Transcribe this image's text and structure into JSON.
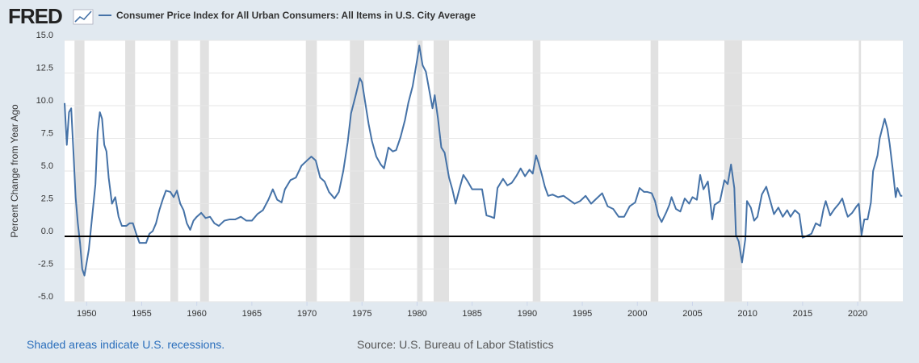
{
  "logo": "FRED",
  "chart_data": {
    "type": "line",
    "title": "Consumer Price Index for All Urban Consumers: All Items in U.S. City Average",
    "ylabel": "Percent Change from Year Ago",
    "recession_note": "Shaded areas indicate U.S. recessions.",
    "source": "Source: U.S. Bureau of Labor Statistics",
    "xlim": [
      1948,
      2024.1
    ],
    "ylim": [
      -5,
      15
    ],
    "xticks": [
      1950,
      1955,
      1960,
      1965,
      1970,
      1975,
      1980,
      1985,
      1990,
      1995,
      2000,
      2005,
      2010,
      2015,
      2020
    ],
    "yticks": [
      {
        "value": -5,
        "label": "-5.0"
      },
      -2.5,
      {
        "value": 0,
        "label": "0.0"
      },
      2.5,
      {
        "value": 5,
        "label": "5.0"
      },
      7.5,
      {
        "value": 10,
        "label": "10.0"
      },
      12.5,
      {
        "value": 15,
        "label": "15.0"
      }
    ],
    "grid": true,
    "recessions": [
      [
        1948.9,
        1949.8
      ],
      [
        1953.5,
        1954.4
      ],
      [
        1957.6,
        1958.3
      ],
      [
        1960.3,
        1961.1
      ],
      [
        1969.9,
        1970.9
      ],
      [
        1973.9,
        1975.2
      ],
      [
        1980.0,
        1980.5
      ],
      [
        1981.5,
        1982.9
      ],
      [
        1990.5,
        1991.2
      ],
      [
        2001.2,
        2001.9
      ],
      [
        2007.9,
        2009.5
      ],
      [
        2020.1,
        2020.3
      ]
    ],
    "x": [
      1948.0,
      1948.2,
      1948.4,
      1948.6,
      1948.8,
      1949.0,
      1949.2,
      1949.4,
      1949.6,
      1949.8,
      1950.0,
      1950.2,
      1950.5,
      1950.8,
      1951.0,
      1951.2,
      1951.4,
      1951.6,
      1951.8,
      1952.0,
      1952.3,
      1952.6,
      1952.9,
      1953.2,
      1953.6,
      1953.9,
      1954.2,
      1954.5,
      1954.8,
      1955.1,
      1955.4,
      1955.7,
      1956.0,
      1956.3,
      1956.6,
      1956.9,
      1957.2,
      1957.6,
      1957.9,
      1958.2,
      1958.5,
      1958.8,
      1959.1,
      1959.4,
      1959.7,
      1960.0,
      1960.4,
      1960.8,
      1961.2,
      1961.6,
      1962.0,
      1962.5,
      1963.0,
      1963.5,
      1964.0,
      1964.5,
      1965.0,
      1965.5,
      1966.0,
      1966.5,
      1966.9,
      1967.3,
      1967.7,
      1968.0,
      1968.5,
      1969.0,
      1969.5,
      1970.0,
      1970.4,
      1970.8,
      1971.2,
      1971.6,
      1972.0,
      1972.5,
      1972.9,
      1973.3,
      1973.7,
      1974.0,
      1974.4,
      1974.8,
      1975.0,
      1975.3,
      1975.6,
      1975.9,
      1976.3,
      1976.7,
      1977.0,
      1977.4,
      1977.8,
      1978.1,
      1978.5,
      1978.9,
      1979.2,
      1979.6,
      1980.0,
      1980.2,
      1980.5,
      1980.8,
      1981.1,
      1981.4,
      1981.6,
      1981.9,
      1982.2,
      1982.5,
      1982.9,
      1983.2,
      1983.5,
      1983.9,
      1984.2,
      1984.6,
      1985.0,
      1985.5,
      1985.9,
      1986.3,
      1986.7,
      1987.0,
      1987.3,
      1987.8,
      1988.2,
      1988.6,
      1989.0,
      1989.4,
      1989.8,
      1990.2,
      1990.5,
      1990.8,
      1991.0,
      1991.3,
      1991.6,
      1991.9,
      1992.3,
      1992.8,
      1993.3,
      1993.8,
      1994.3,
      1994.8,
      1995.3,
      1995.8,
      1996.3,
      1996.8,
      1997.3,
      1997.8,
      1998.3,
      1998.8,
      1999.3,
      1999.8,
      2000.2,
      2000.6,
      2000.9,
      2001.3,
      2001.6,
      2001.9,
      2002.2,
      2002.6,
      2002.9,
      2003.1,
      2003.5,
      2003.9,
      2004.3,
      2004.7,
      2005.0,
      2005.4,
      2005.7,
      2006.0,
      2006.4,
      2006.8,
      2007.0,
      2007.5,
      2007.9,
      2008.2,
      2008.5,
      2008.8,
      2008.95,
      2009.2,
      2009.5,
      2009.8,
      2009.95,
      2010.3,
      2010.6,
      2010.9,
      2011.3,
      2011.7,
      2012.0,
      2012.4,
      2012.8,
      2013.2,
      2013.6,
      2013.9,
      2014.3,
      2014.7,
      2015.0,
      2015.3,
      2015.8,
      2016.2,
      2016.6,
      2016.9,
      2017.1,
      2017.5,
      2017.9,
      2018.3,
      2018.6,
      2018.9,
      2019.1,
      2019.5,
      2019.9,
      2020.1,
      2020.35,
      2020.6,
      2020.9,
      2021.2,
      2021.4,
      2021.8,
      2022.0,
      2022.3,
      2022.45,
      2022.7,
      2022.9,
      2023.2,
      2023.45,
      2023.6,
      2023.9,
      2024.05
    ],
    "series": [
      {
        "name": "Consumer Price Index for All Urban Consumers: All Items in U.S. City Average",
        "color": "#4572a7",
        "values": [
          10.2,
          7.0,
          9.5,
          9.8,
          6.5,
          3.0,
          1.0,
          -0.5,
          -2.5,
          -3.0,
          -2.0,
          -1.0,
          1.5,
          4.0,
          8.0,
          9.5,
          9.0,
          7.0,
          6.5,
          4.5,
          2.5,
          3.0,
          1.5,
          0.8,
          0.8,
          1.0,
          1.0,
          0.2,
          -0.5,
          -0.5,
          -0.5,
          0.2,
          0.4,
          1.0,
          2.0,
          2.8,
          3.5,
          3.4,
          3.0,
          3.5,
          2.5,
          2.0,
          1.0,
          0.5,
          1.2,
          1.5,
          1.8,
          1.4,
          1.5,
          1.0,
          0.8,
          1.2,
          1.3,
          1.3,
          1.5,
          1.2,
          1.2,
          1.7,
          2.0,
          2.8,
          3.6,
          2.8,
          2.6,
          3.6,
          4.3,
          4.5,
          5.4,
          5.8,
          6.1,
          5.8,
          4.5,
          4.2,
          3.4,
          2.9,
          3.4,
          5.0,
          7.2,
          9.4,
          10.7,
          12.1,
          11.8,
          10.2,
          8.6,
          7.3,
          6.1,
          5.5,
          5.2,
          6.8,
          6.5,
          6.6,
          7.6,
          8.9,
          10.2,
          11.5,
          13.5,
          14.6,
          13.1,
          12.6,
          11.2,
          9.8,
          10.8,
          9.0,
          6.8,
          6.4,
          4.5,
          3.6,
          2.5,
          3.8,
          4.7,
          4.2,
          3.6,
          3.6,
          3.6,
          1.6,
          1.5,
          1.4,
          3.7,
          4.4,
          3.9,
          4.1,
          4.6,
          5.2,
          4.6,
          5.1,
          4.8,
          6.2,
          5.7,
          4.8,
          3.8,
          3.1,
          3.2,
          3.0,
          3.1,
          2.8,
          2.5,
          2.7,
          3.1,
          2.5,
          2.9,
          3.3,
          2.3,
          2.1,
          1.5,
          1.5,
          2.3,
          2.6,
          3.7,
          3.4,
          3.4,
          3.3,
          2.7,
          1.6,
          1.1,
          1.8,
          2.4,
          3.0,
          2.1,
          1.9,
          2.9,
          2.5,
          3.0,
          2.8,
          4.7,
          3.6,
          4.2,
          1.3,
          2.4,
          2.7,
          4.3,
          4.0,
          5.5,
          3.7,
          0.1,
          -0.4,
          -2.0,
          -0.2,
          2.7,
          2.2,
          1.2,
          1.5,
          3.2,
          3.8,
          2.9,
          1.7,
          2.2,
          1.5,
          2.0,
          1.5,
          2.0,
          1.7,
          -0.1,
          0.0,
          0.2,
          1.0,
          0.8,
          2.1,
          2.7,
          1.6,
          2.1,
          2.5,
          2.9,
          2.0,
          1.5,
          1.8,
          2.3,
          2.5,
          0.1,
          1.3,
          1.3,
          2.6,
          5.0,
          6.2,
          7.5,
          8.5,
          9.0,
          8.2,
          7.1,
          5.0,
          3.0,
          3.7,
          3.1,
          3.1
        ]
      }
    ]
  }
}
